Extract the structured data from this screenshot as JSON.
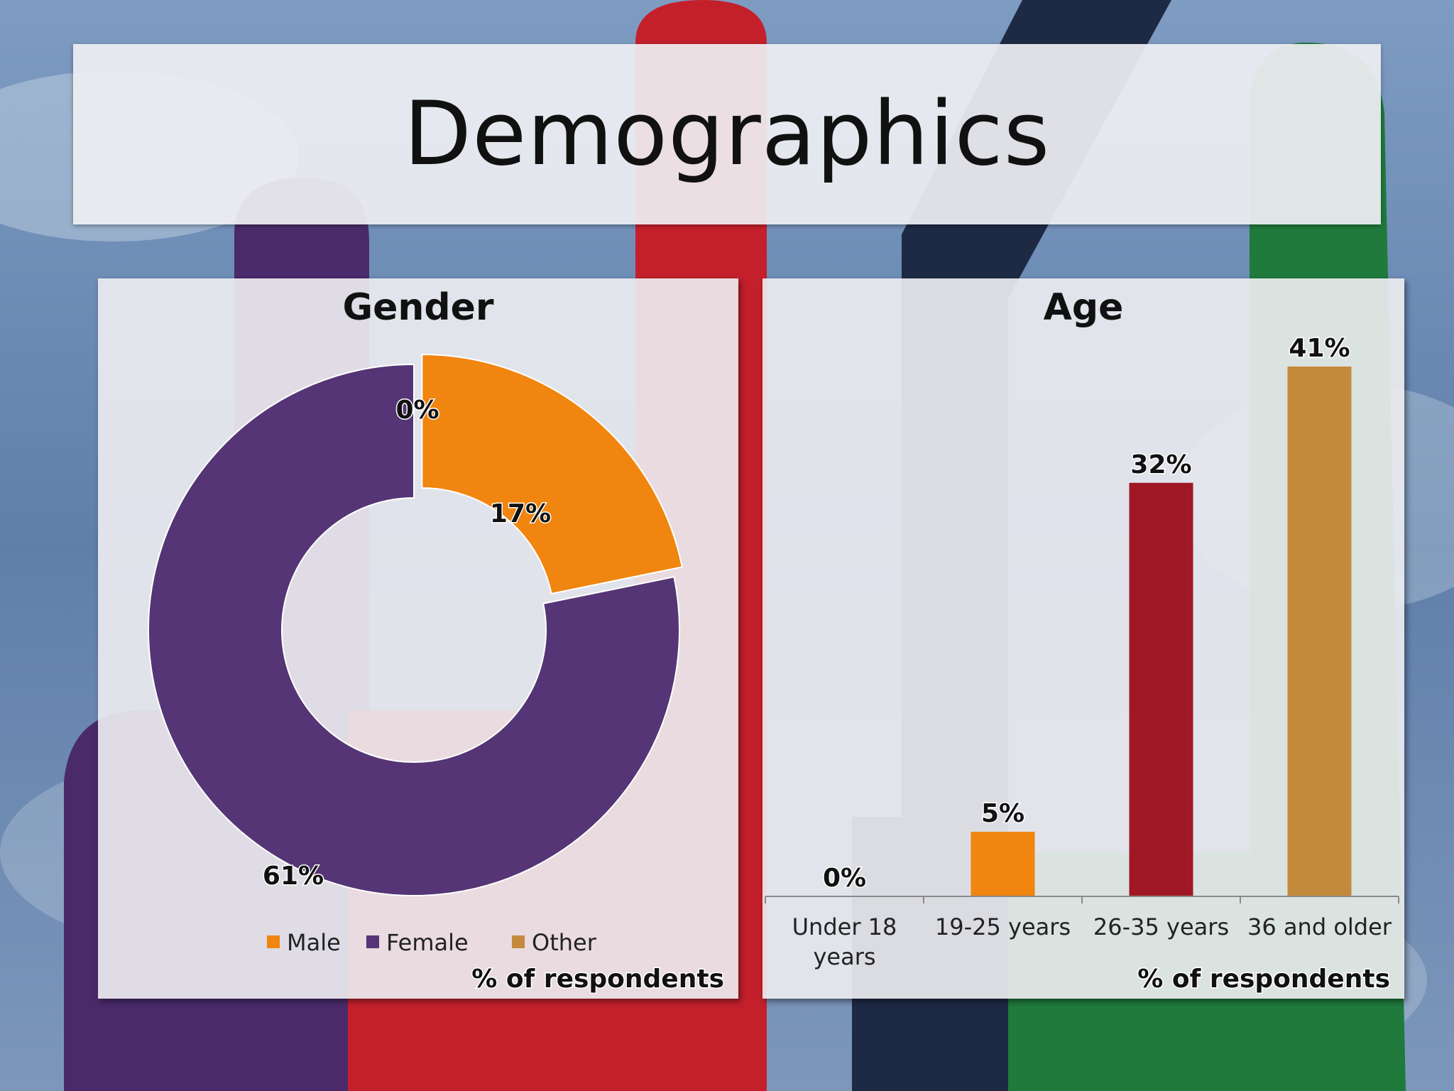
{
  "slide": {
    "title": "Demographics"
  },
  "colors": {
    "male": "#f0850f",
    "female": "#553575",
    "other": "#c48a3c",
    "under18": "#999999",
    "age_19_25": "#f0850f",
    "age_26_35": "#a01826",
    "age_36_older": "#c48a3c",
    "foam_purple": "#4a2a6a",
    "foam_red": "#c4202c",
    "foam_navy": "#1e2a44",
    "foam_green": "#1f7a3c"
  },
  "chart_data": [
    {
      "type": "pie",
      "variant": "donut",
      "title": "Gender",
      "categories": [
        "Male",
        "Female",
        "Other"
      ],
      "values": [
        17,
        61,
        0
      ],
      "labels": [
        "17%",
        "61%",
        "0%"
      ],
      "legend": {
        "position": "bottom",
        "entries": [
          "Male",
          "Female",
          "Other"
        ]
      },
      "footnote": "% of respondents"
    },
    {
      "type": "bar",
      "title": "Age",
      "categories": [
        "Under 18 years",
        "19-25 years",
        "26-35 years",
        "36 and older"
      ],
      "category_lines": [
        [
          "Under 18",
          "years"
        ],
        [
          "19-25 years"
        ],
        [
          "26-35 years"
        ],
        [
          "36 and older"
        ]
      ],
      "values": [
        0,
        5,
        32,
        41
      ],
      "labels": [
        "0%",
        "5%",
        "32%",
        "41%"
      ],
      "ylim": [
        0,
        41
      ],
      "grid": false,
      "footnote": "% of respondents"
    }
  ]
}
